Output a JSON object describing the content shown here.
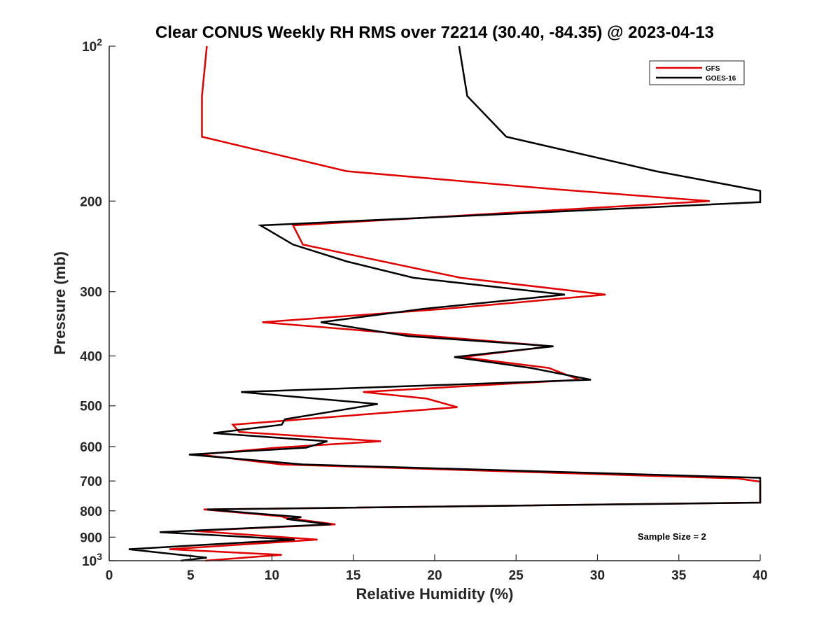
{
  "chart_data": {
    "type": "line",
    "title": "Clear CONUS Weekly RH RMS over 72214 (30.40, -84.35) @ 2023-04-13",
    "xlabel": "Relative Humidity (%)",
    "ylabel": "Pressure (mb)",
    "xlim": [
      0,
      40
    ],
    "ylim": [
      100,
      1000
    ],
    "yscale": "log",
    "y_reversed": true,
    "xticks": [
      0,
      5,
      10,
      15,
      20,
      25,
      30,
      35,
      40
    ],
    "yticks": [
      {
        "value": 100,
        "label": "10",
        "sup": "2"
      },
      {
        "value": 200,
        "label": "200"
      },
      {
        "value": 300,
        "label": "300"
      },
      {
        "value": 400,
        "label": "400"
      },
      {
        "value": 500,
        "label": "500"
      },
      {
        "value": 600,
        "label": "600"
      },
      {
        "value": 700,
        "label": "700"
      },
      {
        "value": 800,
        "label": "800"
      },
      {
        "value": 900,
        "label": "900"
      },
      {
        "value": 1000,
        "label": "10",
        "sup": "3"
      }
    ],
    "legend_position": "top-right",
    "annotation": "Sample Size = 2",
    "series": [
      {
        "name": "GFS",
        "color": "#e00000",
        "points": [
          [
            6.0,
            100
          ],
          [
            5.7,
            125
          ],
          [
            5.7,
            150
          ],
          [
            14.6,
            175
          ],
          [
            27.7,
            190
          ],
          [
            36.9,
            200
          ],
          [
            11.3,
            223
          ],
          [
            11.9,
            243
          ],
          [
            21.6,
            282
          ],
          [
            30.5,
            304
          ],
          [
            20.6,
            324
          ],
          [
            9.4,
            344
          ],
          [
            19.8,
            366
          ],
          [
            27.2,
            383
          ],
          [
            21.7,
            402
          ],
          [
            27.0,
            422
          ],
          [
            28.9,
            445
          ],
          [
            15.6,
            470
          ],
          [
            19.5,
            484
          ],
          [
            21.4,
            503
          ],
          [
            7.6,
            544
          ],
          [
            8.0,
            562
          ],
          [
            16.7,
            586
          ],
          [
            10.3,
            603
          ],
          [
            5.5,
            622
          ],
          [
            10.6,
            650
          ],
          [
            38.6,
            692
          ],
          [
            40.0,
            702
          ],
          [
            40.0,
            771
          ],
          [
            5.8,
            795
          ],
          [
            10.6,
            820
          ],
          [
            10.8,
            825
          ],
          [
            13.9,
            850
          ],
          [
            5.2,
            875
          ],
          [
            12.8,
            910
          ],
          [
            3.7,
            950
          ],
          [
            10.6,
            974
          ],
          [
            5.9,
            1000
          ]
        ]
      },
      {
        "name": "GOES-16",
        "color": "#000000",
        "points": [
          [
            21.5,
            100
          ],
          [
            22.0,
            125
          ],
          [
            24.4,
            150
          ],
          [
            33.6,
            175
          ],
          [
            40.0,
            191
          ],
          [
            40.0,
            201
          ],
          [
            9.3,
            223
          ],
          [
            11.3,
            243
          ],
          [
            14.6,
            262
          ],
          [
            18.7,
            282
          ],
          [
            28.0,
            304
          ],
          [
            19.3,
            324
          ],
          [
            13.0,
            344
          ],
          [
            18.4,
            366
          ],
          [
            27.3,
            383
          ],
          [
            21.2,
            402
          ],
          [
            25.9,
            422
          ],
          [
            29.6,
            445
          ],
          [
            8.1,
            470
          ],
          [
            16.5,
            496
          ],
          [
            10.8,
            531
          ],
          [
            10.6,
            544
          ],
          [
            6.4,
            565
          ],
          [
            13.4,
            586
          ],
          [
            12.1,
            603
          ],
          [
            4.9,
            622
          ],
          [
            11.9,
            650
          ],
          [
            40.0,
            690
          ],
          [
            40.0,
            697
          ],
          [
            40.0,
            771
          ],
          [
            6.0,
            795
          ],
          [
            11.8,
            823
          ],
          [
            10.9,
            830
          ],
          [
            13.6,
            850
          ],
          [
            3.1,
            880
          ],
          [
            11.4,
            910
          ],
          [
            1.2,
            950
          ],
          [
            6.0,
            987
          ],
          [
            4.4,
            1000
          ]
        ]
      }
    ]
  }
}
